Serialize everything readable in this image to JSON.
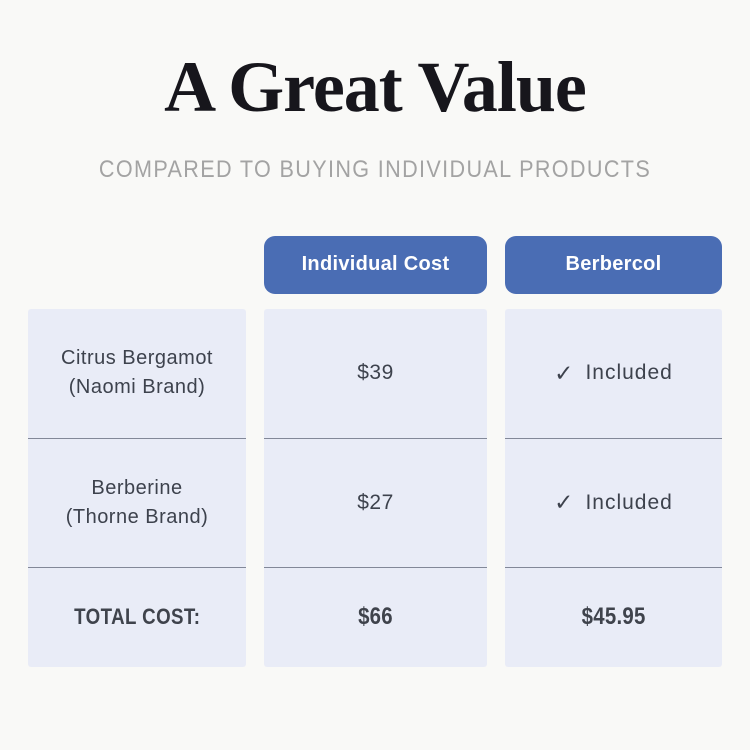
{
  "header": {
    "title": "A Great Value",
    "subtitle": "COMPARED TO BUYING INDIVIDUAL PRODUCTS"
  },
  "columns": {
    "individual": "Individual Cost",
    "berbercol": "Berbercol"
  },
  "rows": [
    {
      "name_line1": "Citrus Bergamot",
      "name_line2": "(Naomi Brand)",
      "individual_cost": "$39",
      "check": "✓",
      "included": "Included"
    },
    {
      "name_line1": "Berberine",
      "name_line2": "(Thorne Brand)",
      "individual_cost": "$27",
      "check": "✓",
      "included": "Included"
    }
  ],
  "total": {
    "label": "TOTAL COST:",
    "individual_cost": "$66",
    "berbercol_cost": "$45.95"
  },
  "colors": {
    "page_background": "#f9f9f7",
    "cell_background": "#e9ecf7",
    "header_pill_blue": "#4a6db4",
    "pill_text": "#ffffff",
    "body_text": "#3d424d",
    "separator_line": "#828898",
    "subtitle_gray": "#a3a3a3",
    "title_black": "#17161c"
  },
  "chart_data": {
    "type": "table",
    "title": "A Great Value",
    "subtitle": "COMPARED TO BUYING INDIVIDUAL PRODUCTS",
    "columns": [
      "",
      "Individual Cost",
      "Berbercol"
    ],
    "rows": [
      [
        "Citrus Bergamot (Naomi Brand)",
        "$39",
        "✓ Included"
      ],
      [
        "Berberine (Thorne Brand)",
        "$27",
        "✓ Included"
      ],
      [
        "TOTAL COST:",
        "$66",
        "$45.95"
      ]
    ]
  }
}
